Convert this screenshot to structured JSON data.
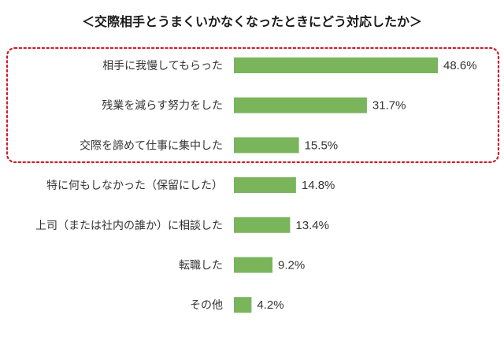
{
  "chart_data": {
    "type": "bar",
    "orientation": "horizontal",
    "title": "＜交際相手とうまくいかなくなったときにどう対応したか＞",
    "categories": [
      "相手に我慢してもらった",
      "残業を減らす努力をした",
      "交際を諦めて仕事に集中した",
      "特に何もしなかった（保留にした）",
      "上司（または社内の誰か）に相談した",
      "転職した",
      "その他"
    ],
    "values": [
      48.6,
      31.7,
      15.5,
      14.8,
      13.4,
      9.2,
      4.2
    ],
    "value_labels": [
      "48.6%",
      "31.7%",
      "15.5%",
      "14.8%",
      "13.4%",
      "9.2%",
      "4.2%"
    ],
    "unit": "%",
    "xlim": [
      0,
      100
    ],
    "grid": false,
    "legend": "none",
    "highlight": {
      "category_indices": [
        0,
        1,
        2
      ],
      "style": "dotted-rounded-rectangle"
    }
  },
  "colors": {
    "bar": "#7ab55c",
    "highlight_border": "#cc1f2e",
    "text": "#333333",
    "title": "#1a1a1a",
    "background": "#ffffff"
  }
}
